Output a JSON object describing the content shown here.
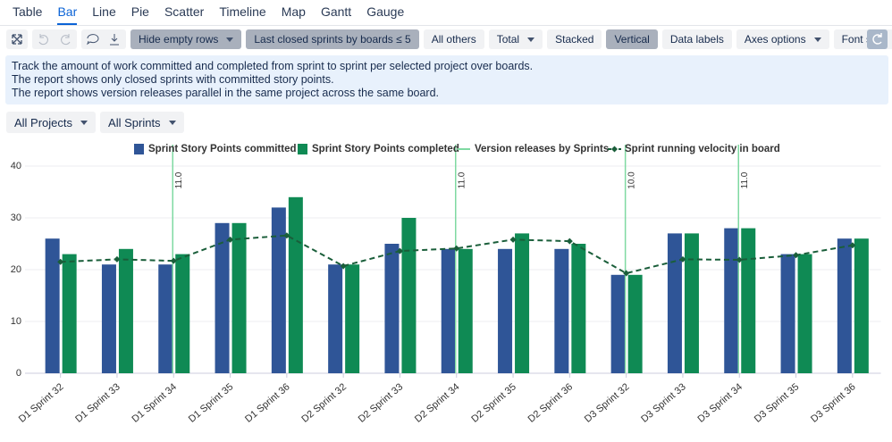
{
  "tabs": [
    "Table",
    "Bar",
    "Line",
    "Pie",
    "Scatter",
    "Timeline",
    "Map",
    "Gantt",
    "Gauge"
  ],
  "active_tab": "Bar",
  "toolbar": [
    "Hide empty rows",
    "Last closed sprints by boards ≤ 5",
    "All others",
    "Total",
    "Stacked",
    "Vertical",
    "Data labels",
    "Axes options",
    "Font size"
  ],
  "info": [
    "Track the amount of work committed and completed from sprint to sprint per selected project over boards.",
    "The report shows only closed sprints with committed story points.",
    "The report shows version releases parallel in the same project across the same board."
  ],
  "filters": [
    "All Projects",
    "All Sprints"
  ],
  "chart_data": {
    "type": "bar",
    "categories": [
      "D1 Sprint 32",
      "D1 Sprint 33",
      "D1 Sprint 34",
      "D1 Sprint 35",
      "D1 Sprint 36",
      "D2 Sprint 32",
      "D2 Sprint 33",
      "D2 Sprint 34",
      "D2 Sprint 35",
      "D2 Sprint 36",
      "D3 Sprint 32",
      "D3 Sprint 33",
      "D3 Sprint 34",
      "D3 Sprint 35",
      "D3 Sprint 36"
    ],
    "series": [
      {
        "name": "Sprint Story Points committed",
        "color": "#2f5597",
        "values": [
          26,
          21,
          21,
          29,
          32,
          21,
          25,
          24,
          24,
          24,
          19,
          27,
          28,
          23,
          26
        ]
      },
      {
        "name": "Sprint Story Points completed",
        "color": "#0f8a54",
        "values": [
          23,
          24,
          23,
          29,
          34,
          21,
          30,
          24,
          27,
          25,
          19,
          27,
          28,
          23,
          26
        ]
      },
      {
        "name": "Sprint running velocity in board",
        "type": "line",
        "color": "#1a5e3a",
        "values": [
          21.5,
          22,
          21.7,
          25.8,
          26.6,
          20.7,
          23.6,
          24.1,
          25.8,
          25.5,
          19.3,
          22,
          21.9,
          22.8,
          24.7
        ]
      }
    ],
    "releases": {
      "name": "Version releases by Sprints",
      "color": "#7fd9a2",
      "categories": [
        "D1 Sprint 34",
        "D2 Sprint 34",
        "D3 Sprint 32",
        "D3 Sprint 34"
      ],
      "labels": [
        "11.0",
        "11.0",
        "10.0",
        "11.0"
      ]
    },
    "ylim": [
      0,
      40
    ],
    "yticks": [
      0,
      10,
      20,
      30,
      40
    ],
    "grid": true
  }
}
